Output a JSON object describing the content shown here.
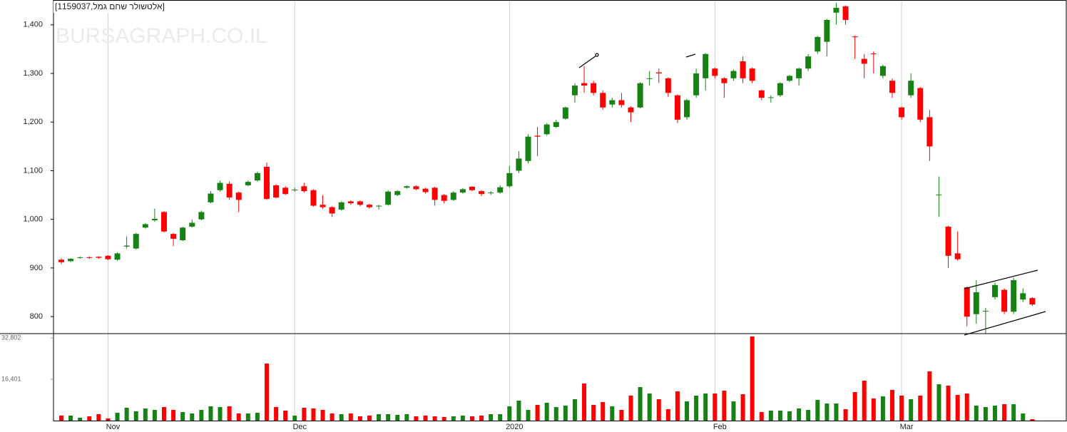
{
  "chart_data": {
    "type": "candlestick",
    "title": "[1159037,אלטשולר שחם גמל]",
    "watermark": "BURSAGRAPH.CO.IL",
    "up_color": "#168216",
    "down_color": "#ff0000",
    "categories": [
      null,
      null,
      null,
      null,
      null,
      "Nov",
      null,
      null,
      null,
      null,
      null,
      null,
      null,
      null,
      null,
      null,
      null,
      null,
      null,
      null,
      null,
      null,
      null,
      null,
      null,
      "Dec",
      null,
      null,
      null,
      null,
      null,
      null,
      null,
      null,
      null,
      null,
      null,
      null,
      null,
      null,
      null,
      null,
      null,
      null,
      null,
      null,
      null,
      null,
      "2020",
      null,
      null,
      null,
      null,
      null,
      null,
      null,
      null,
      null,
      null,
      null,
      null,
      null,
      null,
      null,
      null,
      null,
      null,
      null,
      null,
      null,
      "Feb",
      null,
      null,
      null,
      null,
      null,
      null,
      null,
      null,
      null,
      null,
      null,
      null,
      null,
      null,
      null,
      null,
      null,
      null,
      null,
      "Mar",
      null,
      null,
      null,
      null,
      null,
      null,
      null,
      null,
      null,
      null,
      null,
      null,
      null,
      null
    ],
    "open": [
      917,
      914,
      921,
      922,
      923,
      925,
      917,
      944,
      940,
      983,
      998,
      1015,
      970,
      957,
      985,
      1000,
      1035,
      1060,
      1073,
      1055,
      1070,
      1080,
      1108,
      1070,
      1065,
      1060,
      1068,
      1060,
      1030,
      1025,
      1020,
      1037,
      1037,
      1030,
      1027,
      1030,
      1050,
      1065,
      1068,
      1063,
      1065,
      1050,
      1040,
      1055,
      1067,
      1058,
      1054,
      1055,
      1068,
      1100,
      1120,
      1172,
      1175,
      1190,
      1207,
      1255,
      1280,
      1280,
      1260,
      1236,
      1245,
      1230,
      1230,
      1289,
      1302,
      1290,
      1255,
      1210,
      1255,
      1290,
      1310,
      1290,
      1290,
      1325,
      1310,
      1265,
      1250,
      1255,
      1285,
      1290,
      1310,
      1345,
      1365,
      1425,
      1438,
      1376,
      1330,
      1341,
      1295,
      1285,
      1230,
      1255,
      1270,
      1210,
      1050,
      985,
      930,
      860,
      805,
      811,
      840,
      855,
      810,
      835,
      838
    ],
    "high": [
      920,
      920,
      924,
      924,
      924,
      926,
      932,
      965,
      972,
      992,
      1022,
      1017,
      972,
      985,
      1000,
      1018,
      1058,
      1080,
      1078,
      1057,
      1080,
      1098,
      1117,
      1072,
      1068,
      1065,
      1075,
      1062,
      1050,
      1027,
      1037,
      1039,
      1039,
      1032,
      1030,
      1060,
      1060,
      1070,
      1070,
      1065,
      1067,
      1052,
      1058,
      1064,
      1068,
      1060,
      1058,
      1070,
      1110,
      1140,
      1175,
      1190,
      1198,
      1205,
      1232,
      1280,
      1315,
      1285,
      1265,
      1250,
      1260,
      1232,
      1282,
      1305,
      1310,
      1292,
      1257,
      1248,
      1310,
      1342,
      1312,
      1292,
      1308,
      1335,
      1312,
      1267,
      1255,
      1282,
      1297,
      1312,
      1340,
      1377,
      1412,
      1445,
      1440,
      1378,
      1340,
      1345,
      1318,
      1290,
      1232,
      1300,
      1272,
      1225,
      1088,
      987,
      975,
      862,
      875,
      818,
      870,
      858,
      880,
      858,
      840
    ],
    "low": [
      908,
      912,
      919,
      919,
      919,
      916,
      915,
      940,
      938,
      981,
      995,
      973,
      945,
      955,
      983,
      998,
      1033,
      1057,
      1040,
      1015,
      1068,
      1078,
      1040,
      1043,
      1050,
      1057,
      1055,
      1026,
      1022,
      1005,
      1018,
      1030,
      1027,
      1022,
      1020,
      1028,
      1048,
      1063,
      1060,
      1053,
      1028,
      1033,
      1038,
      1053,
      1058,
      1048,
      1050,
      1053,
      1065,
      1095,
      1115,
      1130,
      1172,
      1188,
      1205,
      1240,
      1260,
      1255,
      1225,
      1230,
      1230,
      1200,
      1228,
      1275,
      1280,
      1252,
      1198,
      1205,
      1250,
      1265,
      1290,
      1250,
      1285,
      1280,
      1280,
      1245,
      1240,
      1252,
      1282,
      1275,
      1305,
      1340,
      1335,
      1400,
      1400,
      1330,
      1290,
      1300,
      1290,
      1250,
      1205,
      1250,
      1200,
      1120,
      1005,
      900,
      915,
      780,
      785,
      765,
      835,
      805,
      805,
      830,
      822
    ],
    "close": [
      912,
      919,
      922,
      921,
      921,
      918,
      930,
      946,
      970,
      990,
      1001,
      975,
      960,
      983,
      993,
      1015,
      1053,
      1075,
      1045,
      1040,
      1077,
      1095,
      1042,
      1045,
      1052,
      1061,
      1058,
      1028,
      1025,
      1012,
      1035,
      1033,
      1030,
      1025,
      1028,
      1057,
      1058,
      1068,
      1062,
      1056,
      1040,
      1038,
      1055,
      1062,
      1060,
      1052,
      1055,
      1066,
      1095,
      1125,
      1170,
      1170,
      1195,
      1200,
      1230,
      1275,
      1275,
      1260,
      1230,
      1245,
      1235,
      1220,
      1280,
      1290,
      1300,
      1260,
      1205,
      1245,
      1300,
      1340,
      1295,
      1280,
      1305,
      1290,
      1285,
      1250,
      1251,
      1280,
      1295,
      1310,
      1335,
      1375,
      1410,
      1435,
      1410,
      1375,
      1320,
      1340,
      1315,
      1260,
      1210,
      1285,
      1205,
      1150,
      1051,
      925,
      918,
      800,
      850,
      812,
      865,
      810,
      875,
      848,
      825
    ],
    "volume": [
      1980,
      1980,
      1130,
      1700,
      2545,
      850,
      3110,
      5090,
      3680,
      4810,
      4240,
      5370,
      4240,
      3390,
      2830,
      4240,
      5660,
      5370,
      5660,
      2830,
      2830,
      3110,
      22620,
      5370,
      3960,
      1980,
      5090,
      4810,
      4240,
      2830,
      2545,
      2830,
      1700,
      1980,
      2545,
      2545,
      2260,
      2545,
      1700,
      1980,
      1700,
      1410,
      1700,
      1980,
      1700,
      1980,
      2545,
      2545,
      5660,
      7920,
      4240,
      6220,
      7070,
      5370,
      5940,
      8480,
      14710,
      6220,
      7350,
      5660,
      4240,
      9900,
      13290,
      10750,
      8480,
      4520,
      11590,
      7640,
      9900,
      10750,
      10750,
      11880,
      7640,
      10460,
      33370,
      3390,
      3960,
      3960,
      3680,
      4810,
      4240,
      8200,
      6790,
      6790,
      4520,
      11310,
      15840,
      8770,
      9620,
      12160,
      9900,
      8480,
      9900,
      19510,
      14420,
      13860,
      10180,
      10750,
      5940,
      5370,
      5940,
      6500,
      6500,
      2830,
      570
    ],
    "ylim": [
      765,
      1451
    ],
    "yticks": [
      {
        "value": 800,
        "label": "800"
      },
      {
        "value": 900,
        "label": "900"
      },
      {
        "value": 1000,
        "label": "1,000"
      },
      {
        "value": 1100,
        "label": "1,100"
      },
      {
        "value": 1200,
        "label": "1,200"
      },
      {
        "value": 1300,
        "label": "1,300"
      },
      {
        "value": 1400,
        "label": "1,400"
      }
    ],
    "volume_ylim": [
      0,
      34498
    ],
    "volume_yticks": [
      {
        "value": 16401,
        "label": "16,401"
      },
      {
        "value": 32802,
        "label": "32,802"
      }
    ],
    "grid": true
  }
}
